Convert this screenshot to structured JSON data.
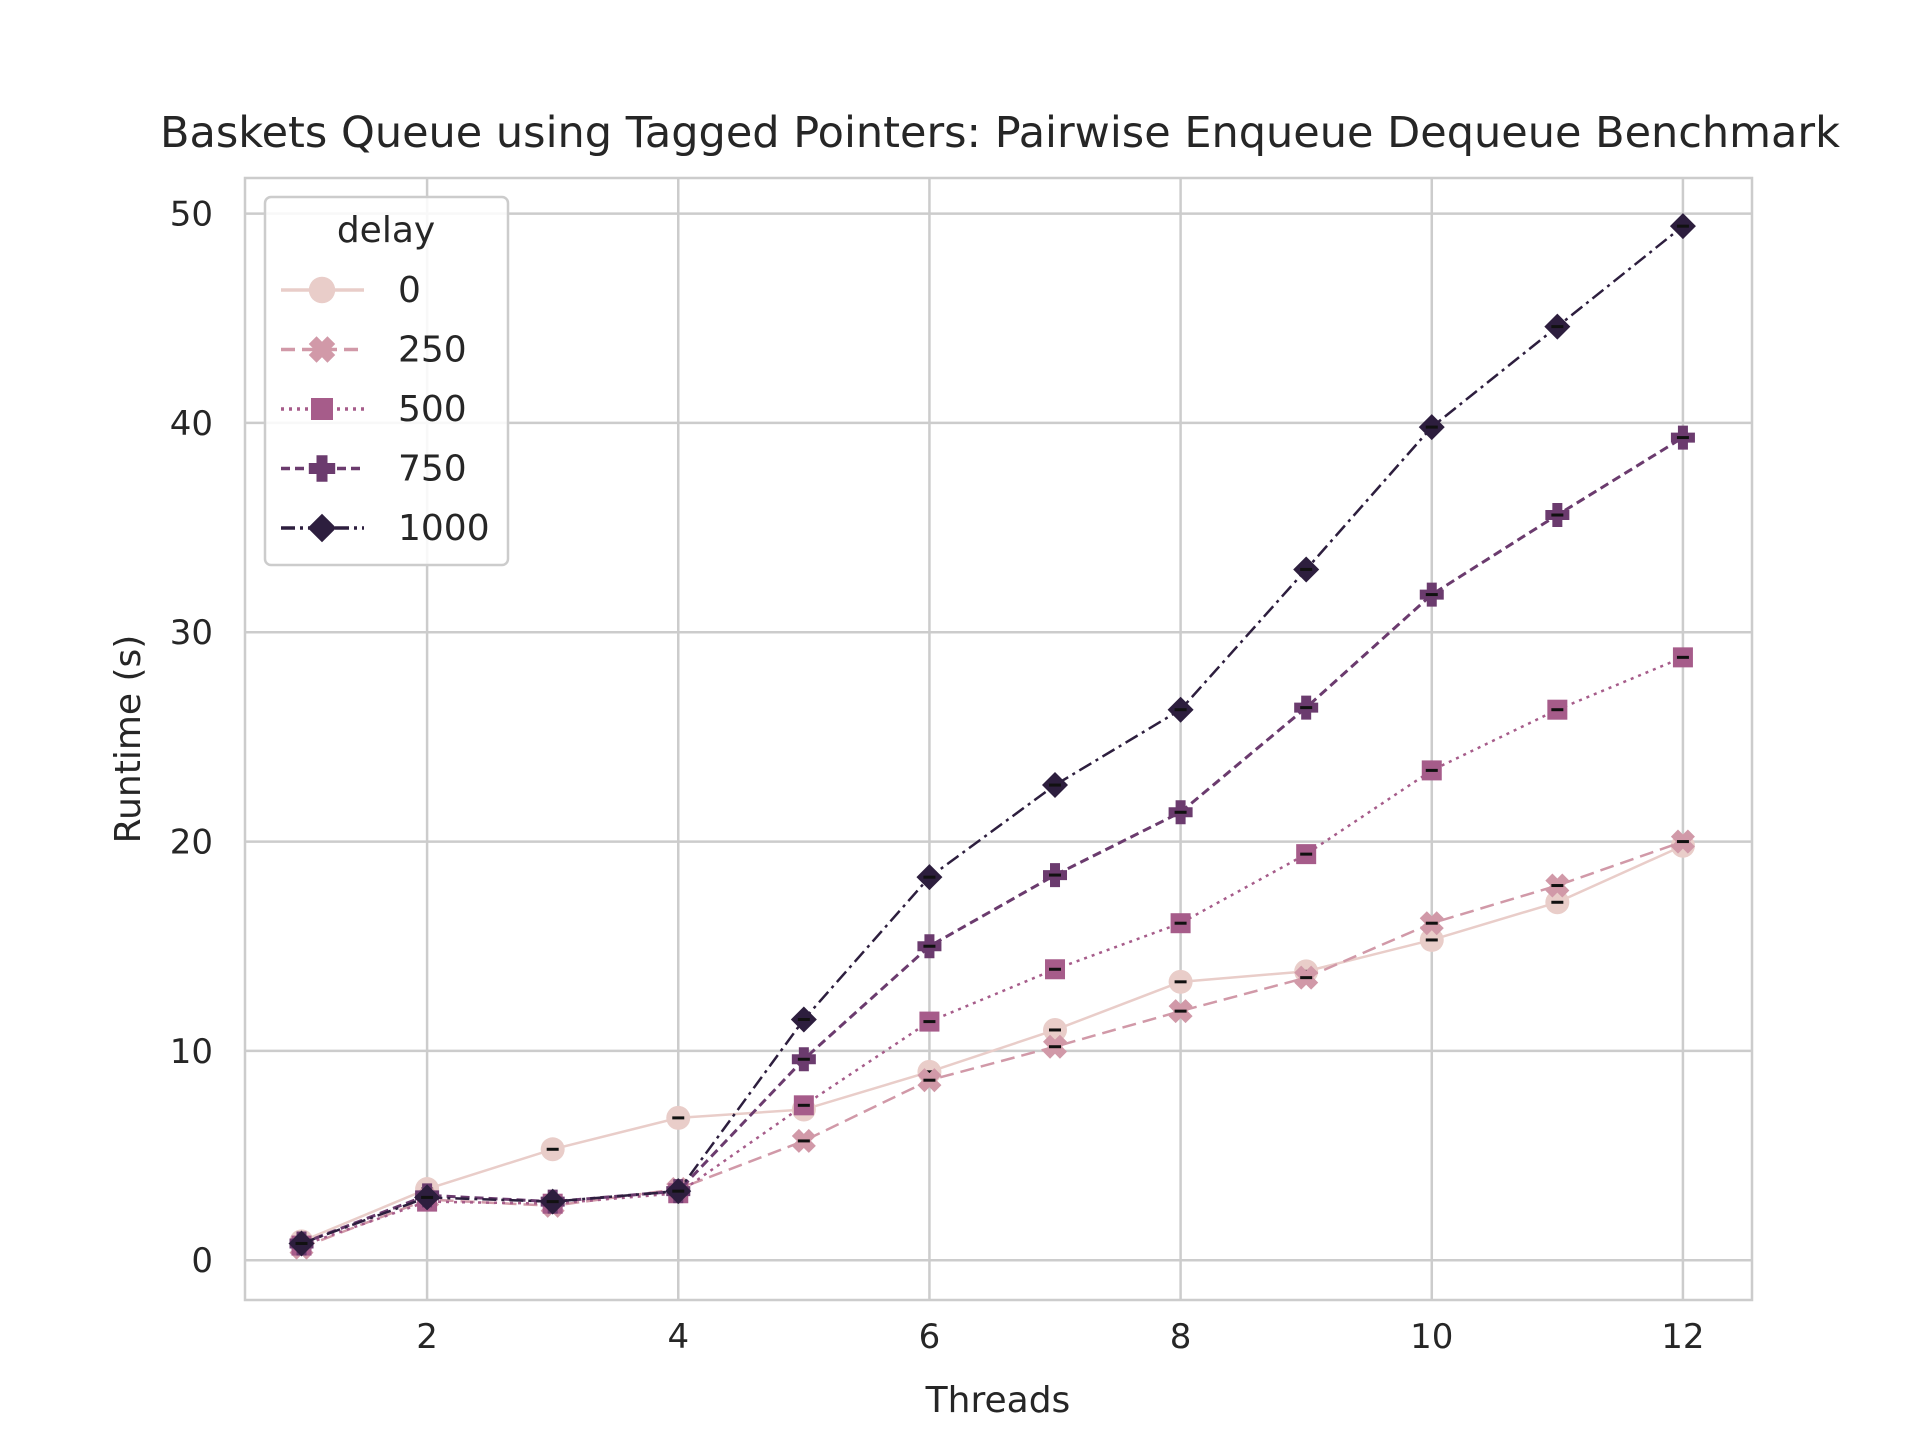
{
  "chart_data": {
    "type": "line",
    "title": "Baskets Queue using Tagged Pointers: Pairwise Enqueue Dequeue Benchmark",
    "xlabel": "Threads",
    "ylabel": "Runtime (s)",
    "xlim": [
      0.55,
      12.55
    ],
    "ylim": [
      -1.9,
      51.7
    ],
    "xticks": [
      2,
      4,
      6,
      8,
      10,
      12
    ],
    "yticks": [
      0,
      10,
      20,
      30,
      40,
      50
    ],
    "grid": true,
    "legend": {
      "title": "delay",
      "position": "top-left"
    },
    "x": [
      1,
      2,
      3,
      4,
      5,
      6,
      7,
      8,
      9,
      10,
      11,
      12
    ],
    "series": [
      {
        "name": "0",
        "color": "#e9cdc9",
        "marker": "circle",
        "dash": "solid",
        "values": [
          0.9,
          3.4,
          5.3,
          6.8,
          7.2,
          9.0,
          11.0,
          13.3,
          13.8,
          15.3,
          17.1,
          19.8
        ]
      },
      {
        "name": "250",
        "color": "#d199a8",
        "marker": "x",
        "dash": "dashed",
        "values": [
          0.6,
          2.9,
          2.6,
          3.4,
          5.7,
          8.6,
          10.2,
          11.9,
          13.5,
          16.1,
          17.9,
          20.0
        ]
      },
      {
        "name": "500",
        "color": "#a65c8a",
        "marker": "square",
        "dash": "dotted",
        "values": [
          0.7,
          2.8,
          2.7,
          3.2,
          7.4,
          11.4,
          13.9,
          16.1,
          19.4,
          23.4,
          26.3,
          28.8
        ]
      },
      {
        "name": "750",
        "color": "#6b3b6e",
        "marker": "plus",
        "dash": "densedash",
        "values": [
          0.8,
          3.1,
          2.8,
          3.3,
          9.6,
          15.0,
          18.4,
          21.4,
          26.4,
          31.8,
          35.6,
          39.3
        ]
      },
      {
        "name": "1000",
        "color": "#2d1e3e",
        "marker": "diamond",
        "dash": "dashdot",
        "values": [
          0.8,
          3.0,
          2.8,
          3.3,
          11.5,
          18.3,
          22.7,
          26.3,
          33.0,
          39.8,
          44.6,
          49.4
        ]
      }
    ]
  }
}
